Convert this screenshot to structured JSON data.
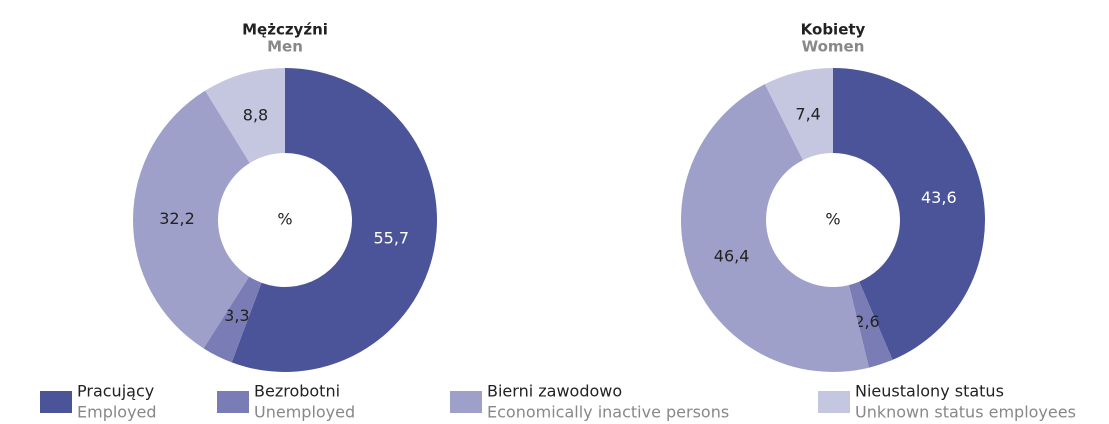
{
  "chart_data": [
    {
      "type": "pie",
      "title": "Mężczyźni",
      "subtitle": "Men",
      "center_label": "%",
      "values": [
        55.7,
        3.3,
        32.2,
        8.8
      ],
      "value_labels": [
        "55,7",
        "3,3",
        "32,2",
        "8,8"
      ]
    },
    {
      "type": "pie",
      "title": "Kobiety",
      "subtitle": "Women",
      "center_label": "%",
      "values": [
        43.6,
        2.6,
        46.4,
        7.4
      ],
      "value_labels": [
        "43,6",
        "2,6",
        "46,4",
        "7,4"
      ]
    }
  ],
  "legend": {
    "items": [
      {
        "label": "Pracujący",
        "sublabel": "Employed",
        "color": "#4b5498"
      },
      {
        "label": "Bezrobotni",
        "sublabel": "Unemployed",
        "color": "#7a7db5"
      },
      {
        "label": "Bierni zawodowo",
        "sublabel": "Economically inactive persons",
        "color": "#9fa0c9"
      },
      {
        "label": "Nieustalony status",
        "sublabel": "Unknown status employees",
        "color": "#c5c6e0"
      }
    ]
  }
}
